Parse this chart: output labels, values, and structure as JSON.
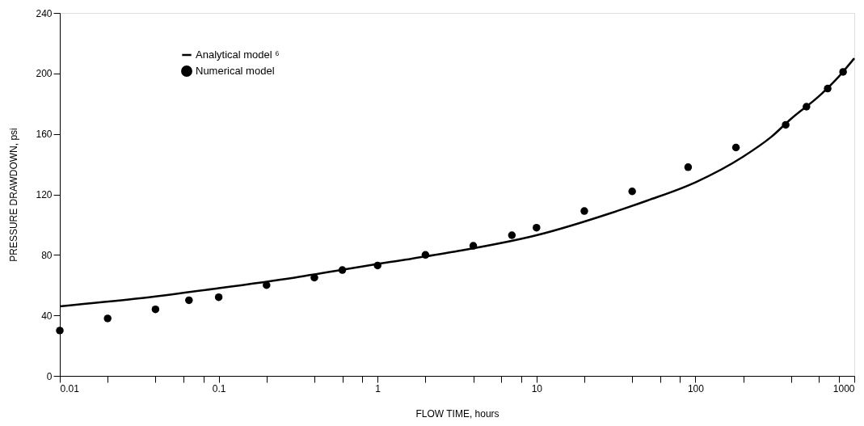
{
  "chart_data": {
    "type": "line",
    "xlabel": "FLOW TIME, hours",
    "ylabel": "PRESSURE DRAWDOWN, psi",
    "log": "x",
    "xlim": [
      0.01,
      1000
    ],
    "ylim": [
      0,
      240
    ],
    "xticks": [
      0.01,
      {
        "value": 0.02,
        "label": null
      },
      {
        "value": 0.04,
        "label": null
      },
      {
        "value": 0.06,
        "label": null
      },
      {
        "value": 0.08,
        "label": null
      },
      0.1,
      {
        "value": 0.2,
        "label": null
      },
      {
        "value": 0.4,
        "label": null
      },
      {
        "value": 0.6,
        "label": null
      },
      {
        "value": 0.8,
        "label": null
      },
      1,
      {
        "value": 2,
        "label": null
      },
      {
        "value": 4,
        "label": null
      },
      {
        "value": 6,
        "label": null
      },
      {
        "value": 8,
        "label": null
      },
      10,
      {
        "value": 20,
        "label": null
      },
      {
        "value": 40,
        "label": null
      },
      {
        "value": 60,
        "label": null
      },
      {
        "value": 80,
        "label": null
      },
      100,
      {
        "value": 200,
        "label": null
      },
      {
        "value": 400,
        "label": null
      },
      {
        "value": 600,
        "label": null
      },
      {
        "value": 800,
        "label": null
      },
      1000
    ],
    "yticks": [
      0,
      40,
      80,
      120,
      160,
      200,
      240
    ],
    "grid": false,
    "legend": "top left",
    "line_style": "solid",
    "series": [
      {
        "name": "Analytical model ⁶",
        "type": "line",
        "color": "#000000",
        "marker": "none",
        "x": [
          0.01,
          0.03,
          0.1,
          0.3,
          1,
          3,
          10,
          30,
          50,
          100,
          200,
          300,
          400,
          600,
          800,
          1000
        ],
        "values": [
          46,
          51,
          58,
          65,
          74,
          82,
          93,
          108,
          116,
          128,
          145,
          158,
          170,
          185,
          198,
          210
        ]
      },
      {
        "name": "Numerical model",
        "type": "scatter",
        "color": "#000000",
        "marker": "circle",
        "x": [
          0.01,
          0.02,
          0.04,
          0.065,
          0.1,
          0.2,
          0.4,
          0.6,
          1,
          2,
          4,
          7,
          10,
          20,
          40,
          90,
          180,
          370,
          500,
          680,
          850
        ],
        "values": [
          30,
          38,
          44,
          50,
          52,
          60,
          65,
          70,
          73,
          80,
          86,
          93,
          98,
          109,
          122,
          138,
          151,
          166,
          178,
          190,
          201
        ]
      }
    ]
  }
}
